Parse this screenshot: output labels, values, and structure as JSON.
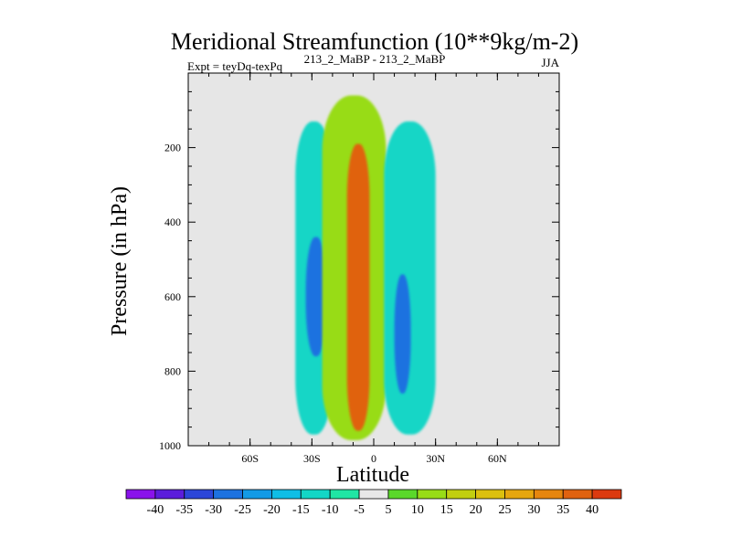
{
  "chart_data": {
    "type": "heatmap",
    "title": "Meridional Streamfunction (10**9kg/m-2)",
    "subtitle_left": "Expt = teyDq-texPq",
    "subtitle_center": "213_2_MaBP - 213_2_MaBP",
    "subtitle_right": "JJA",
    "xlabel": "Latitude",
    "ylabel": "Pressure (in hPa)",
    "x_ticks": [
      {
        "value": -60,
        "label": "60S"
      },
      {
        "value": -30,
        "label": "30S"
      },
      {
        "value": 0,
        "label": "0"
      },
      {
        "value": 30,
        "label": "30N"
      },
      {
        "value": 60,
        "label": "60N"
      }
    ],
    "y_ticks": [
      {
        "value": 200,
        "label": "200"
      },
      {
        "value": 400,
        "label": "400"
      },
      {
        "value": 600,
        "label": "600"
      },
      {
        "value": 800,
        "label": "800"
      },
      {
        "value": 1000,
        "label": "1000"
      }
    ],
    "xlim": [
      -90,
      90
    ],
    "ylim": [
      1000,
      0
    ],
    "missing_color": "#e6e6e6",
    "colorbar": {
      "colors": [
        "#8a13eb",
        "#5b1ddb",
        "#2c46d8",
        "#1d72e0",
        "#139ae6",
        "#0fbee6",
        "#13d6c6",
        "#20e6a4",
        "#e8e8e8",
        "#5ad82a",
        "#98dc16",
        "#c2cf10",
        "#dcc00e",
        "#e6a60e",
        "#e6860e",
        "#e06210",
        "#dc3a10"
      ],
      "labels": [
        "-40",
        "-35",
        "-30",
        "-25",
        "-20",
        "-15",
        "-10",
        "-5",
        "5",
        "10",
        "15",
        "20",
        "25",
        "30",
        "35",
        "40"
      ]
    },
    "cells": {
      "features": [
        {
          "name": "southern-cell-outer",
          "level": -12,
          "lat_range": [
            -38,
            -20
          ],
          "p_range": [
            130,
            970
          ]
        },
        {
          "name": "southern-cell-core",
          "level": -27,
          "lat_range": [
            -33,
            -23
          ],
          "p_range": [
            440,
            760
          ]
        },
        {
          "name": "equatorial-cell-outer",
          "level": 12,
          "lat_range": [
            -25,
            6
          ],
          "p_range": [
            60,
            985
          ]
        },
        {
          "name": "equatorial-cell-core",
          "level": 38,
          "lat_range": [
            -13,
            -2
          ],
          "p_range": [
            190,
            960
          ]
        },
        {
          "name": "northern-cell-outer",
          "level": -12,
          "lat_range": [
            5,
            30
          ],
          "p_range": [
            130,
            970
          ]
        },
        {
          "name": "northern-cell-core",
          "level": -27,
          "lat_range": [
            10,
            18
          ],
          "p_range": [
            540,
            860
          ]
        }
      ]
    }
  }
}
